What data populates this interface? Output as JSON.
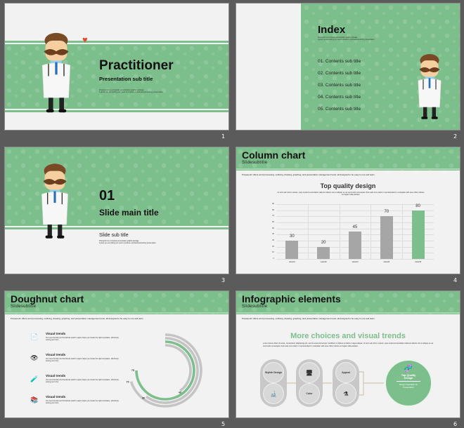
{
  "colors": {
    "accent": "#7dbf8c",
    "bar": "#a6a6a6",
    "background": "#5b5b5b",
    "heart": "#e8482f"
  },
  "slides": [
    {
      "number": "1",
      "title": "Practitioner",
      "subtitle": "Presentation sub title",
      "body": [
        "Powerpoint is a complete presentation graphic package",
        "it gives you everything you need to produce a professional-looking presentation"
      ],
      "icons": [
        "doctor-illustration",
        "heart-icon"
      ]
    },
    {
      "number": "2",
      "title": "Index",
      "body": [
        "Powerpoint is a complete presentation graphic package",
        "it gives you everything you need to produce a professional-looking presentation"
      ],
      "items": [
        "01. Contents sub title",
        "02. Contents sub title",
        "03. Contents sub title",
        "04. Contents sub title",
        "05. Contents sub title"
      ]
    },
    {
      "number": "3",
      "big_number": "01",
      "title": "Slide main title",
      "subtitle": "Slide sub title",
      "body": [
        "Powerpoint is a complete presentation graphic package",
        "it gives you everything you need to produce a professional-looking presentation"
      ]
    },
    {
      "number": "4",
      "title": "Column chart",
      "subtitle": "Slidesubtitle",
      "intro": "Powerpoint offers word processing, outlining, drawing, graphing, and presentation management tools- all designed to be easy to use and learn",
      "chart_title": "Top quality design",
      "chart_desc": "Ut enim ad minim veniam, quis nostrud exercitation ullamco laboris nisi ut aliquip ex ea commodo consequat. Duis aute irure dolor in reprehenderit in voluptate velit esse cillum dolore eu fugiat nulla pariatur."
    },
    {
      "number": "5",
      "title": "Doughnut chart",
      "subtitle": "Slidesubtitle",
      "intro": "Powerpoint offers word processing, outlining, drawing, graphing, and presentation management tools- all designed to be easy to use and learn",
      "items": [
        {
          "title": "Visual trends",
          "text": "Our user-friendly and functional search engine helps you locate the right templates, effectively saving your time.",
          "icon": "document-icon"
        },
        {
          "title": "Visual trends",
          "text": "Our user-friendly and functional search engine helps you locate the right templates, effectively saving your time.",
          "icon": "eye-icon"
        },
        {
          "title": "Visual trends",
          "text": "Our user-friendly and functional search engine helps you locate the right templates, effectively saving your time.",
          "icon": "test-tubes-icon"
        },
        {
          "title": "Visual trends",
          "text": "Our user-friendly and functional search engine helps you locate the right templates, effectively saving your time.",
          "icon": "books-icon"
        }
      ]
    },
    {
      "number": "6",
      "title": "Infographic elements",
      "subtitle": "Slidesubtitle",
      "intro": "Powerpoint offers word processing, outlining, drawing, graphing, and presentation management tools- all designed to be easy to use and learn",
      "heading": "More choices and visual trends",
      "desc": "Lorem ipsum dolor sit amet, consectetur adipisicing elit, sed do eiusmod tempor incididunt ut labore et dolore magna aliqua. Ut enim ad minim veniam, quis nostrud exercitation ullamco laboris nisi ut aliquip ex ea commodo consequat. Duis aute irure dolor in reprehenderit in voluptate velit esse cillum dolore eu fugiat nulla pariatur.",
      "labels": [
        "Stylish Design",
        "Color",
        "Appeal"
      ],
      "final_title": "Top Quality Design",
      "final_sub": "Design Inspiration for Presentation"
    }
  ],
  "chart_data": [
    {
      "type": "bar",
      "categories": [
        "value01",
        "value02",
        "value03",
        "value04",
        "value05"
      ],
      "values": [
        30,
        20,
        45,
        70,
        80
      ],
      "ylim": [
        0,
        90
      ],
      "yticks": [
        0,
        10,
        20,
        30,
        40,
        50,
        60,
        70,
        80,
        90
      ],
      "grid": true,
      "highlight_index": 4
    },
    {
      "type": "doughnut",
      "values": [
        70,
        60,
        75,
        40
      ],
      "max": 100,
      "highlight_index": 2
    }
  ]
}
